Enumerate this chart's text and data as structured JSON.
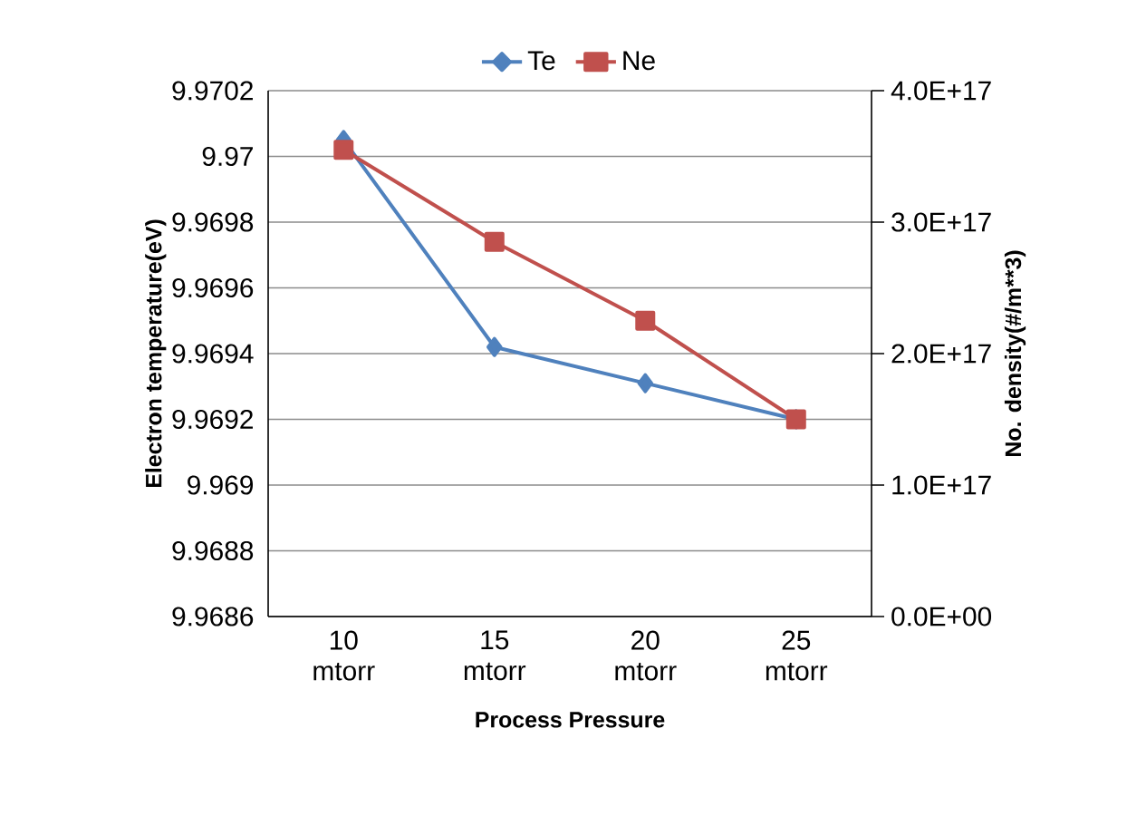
{
  "chart_data": {
    "type": "line",
    "xlabel": "Process Pressure",
    "ylabel": "Electron temperature(eV)",
    "y2label": "No. density(#/m**3)",
    "categories": [
      "10 mtorr",
      "15 mtorr",
      "20 mtorr",
      "25 mtorr"
    ],
    "series": [
      {
        "name": "Te",
        "color": "#4f81bd",
        "marker": "diamond",
        "values": [
          9.97005,
          9.96942,
          9.96931,
          9.9692
        ]
      },
      {
        "name": "Ne",
        "color": "#c0504d",
        "marker": "square",
        "axis": "y2",
        "values": [
          3.55e+17,
          2.85e+17,
          2.25e+17,
          1.5e+17
        ]
      }
    ],
    "ylim": [
      9.9686,
      9.9702
    ],
    "yticks": [
      9.9686,
      9.9688,
      9.969,
      9.9692,
      9.9694,
      9.9696,
      9.9698,
      9.97,
      9.9702
    ],
    "y2lim": [
      0,
      4e+17
    ],
    "y2ticks": [
      {
        "value": 0,
        "label": "0.0E+00"
      },
      {
        "value": 1e+17,
        "label": "1.0E+17"
      },
      {
        "value": 2e+17,
        "label": "2.0E+17"
      },
      {
        "value": 3e+17,
        "label": "3.0E+17"
      },
      {
        "value": 4e+17,
        "label": "4.0E+17"
      }
    ],
    "grid": "y",
    "legend": "top"
  }
}
